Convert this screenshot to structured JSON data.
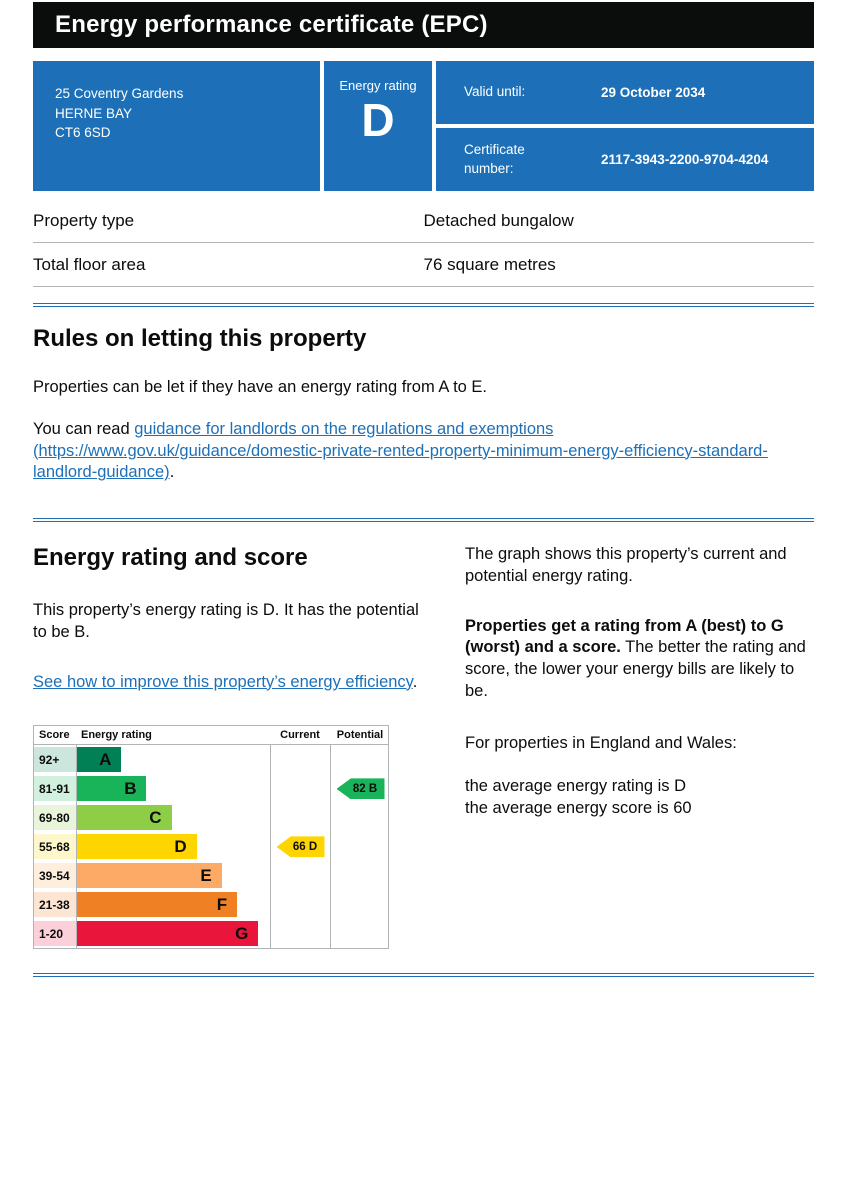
{
  "page": {
    "title": "Energy performance certificate (EPC)"
  },
  "summary": {
    "address_lines": [
      "25 Coventry Gardens",
      "HERNE BAY",
      "CT6 6SD"
    ],
    "energy_rating_label": "Energy rating",
    "energy_rating": "D",
    "valid_until_label": "Valid until:",
    "valid_until_value": "29 October 2034",
    "certificate_number_label": "Certificate number:",
    "certificate_number_value": "2117-3943-2200-9704-4204",
    "accent_color": "#1d70b8"
  },
  "property_details": {
    "rows": [
      {
        "label": "Property type",
        "value": "Detached bungalow"
      },
      {
        "label": "Total floor area",
        "value": "76 square metres"
      }
    ]
  },
  "rules_section": {
    "heading": "Rules on letting this property",
    "intro": "Properties can be let if they have an energy rating from A to E.",
    "read_prefix": "You can read ",
    "guidance_link": "guidance for landlords on the regulations and exemptions (https://www.gov.uk/guidance/domestic-private-rented-property-minimum-energy-efficiency-standard-landlord-guidance)",
    "read_suffix": "."
  },
  "rating_section": {
    "heading": "Energy rating and score",
    "rating_paragraph": "This property’s energy rating is D. It has the potential to be B.",
    "improve_link": "See how to improve this property’s energy efficiency",
    "improve_suffix": ".",
    "graph_paragraph": "The graph shows this property’s current and potential energy rating.",
    "explain_bold": "Properties get a rating from A (best) to G (worst) and a score.",
    "explain_rest": " The better the rating and score, the lower your energy bills are likely to be.",
    "england_wales_intro": "For properties in England and Wales:",
    "average_rating_line": "the average energy rating is D",
    "average_score_line": "the average energy score is 60"
  },
  "chart_data": {
    "type": "epc-rating-bands",
    "title": "Energy rating and score",
    "columns": [
      "Score",
      "Energy rating",
      "Current",
      "Potential"
    ],
    "bands": [
      {
        "score": "92+",
        "letter": "A",
        "color": "#008054",
        "tint": "#cce6dd",
        "width_pct": 23
      },
      {
        "score": "81-91",
        "letter": "B",
        "color": "#19b459",
        "tint": "#d1f0de",
        "width_pct": 36
      },
      {
        "score": "69-80",
        "letter": "C",
        "color": "#8dce46",
        "tint": "#e8f5da",
        "width_pct": 49
      },
      {
        "score": "55-68",
        "letter": "D",
        "color": "#ffd500",
        "tint": "#fff7cc",
        "width_pct": 62
      },
      {
        "score": "39-54",
        "letter": "E",
        "color": "#fcaa65",
        "tint": "#feeede",
        "width_pct": 75
      },
      {
        "score": "21-38",
        "letter": "F",
        "color": "#ef8023",
        "tint": "#fce6d3",
        "width_pct": 83
      },
      {
        "score": "1-20",
        "letter": "G",
        "color": "#e9153b",
        "tint": "#fbd0d8",
        "width_pct": 94
      }
    ],
    "current": {
      "score": 66,
      "letter": "D",
      "color": "#ffd500"
    },
    "potential": {
      "score": 82,
      "letter": "B",
      "color": "#19b459"
    }
  }
}
